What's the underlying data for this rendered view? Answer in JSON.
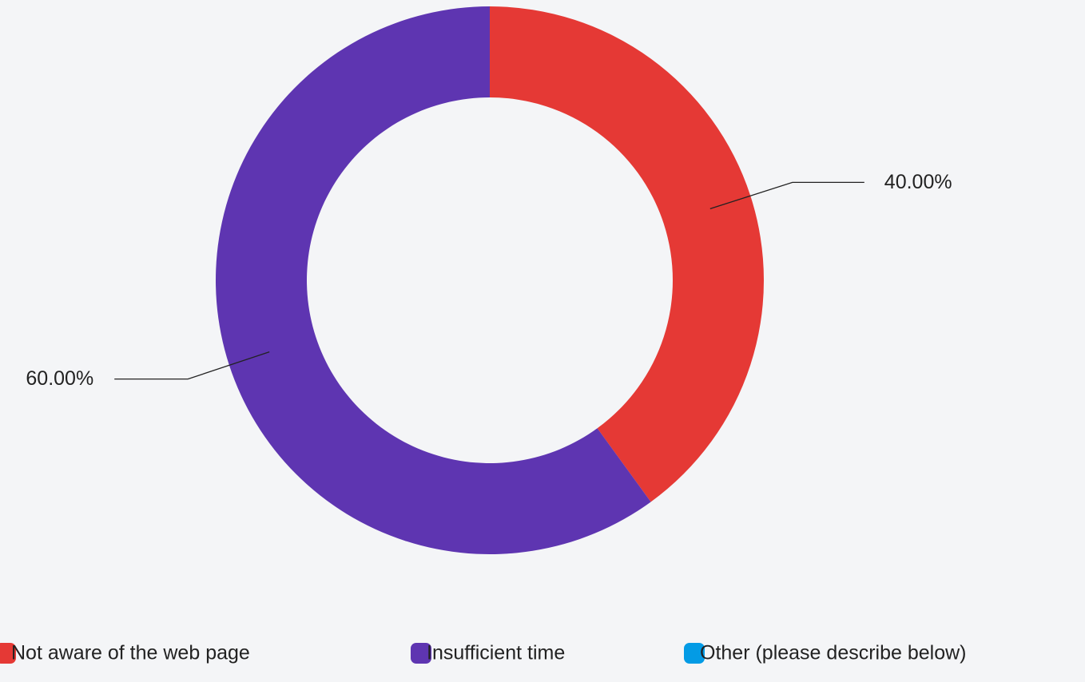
{
  "chart_data": {
    "type": "donut",
    "categories": [
      "Not aware of the web page",
      "Insufficient time",
      "Other (please describe below)"
    ],
    "values": [
      40,
      60,
      0
    ],
    "value_labels": [
      "40.00%",
      "60.00%",
      null
    ],
    "colors": [
      "#e53935",
      "#5e35b1",
      "#039be5"
    ],
    "legend": "bottom"
  }
}
